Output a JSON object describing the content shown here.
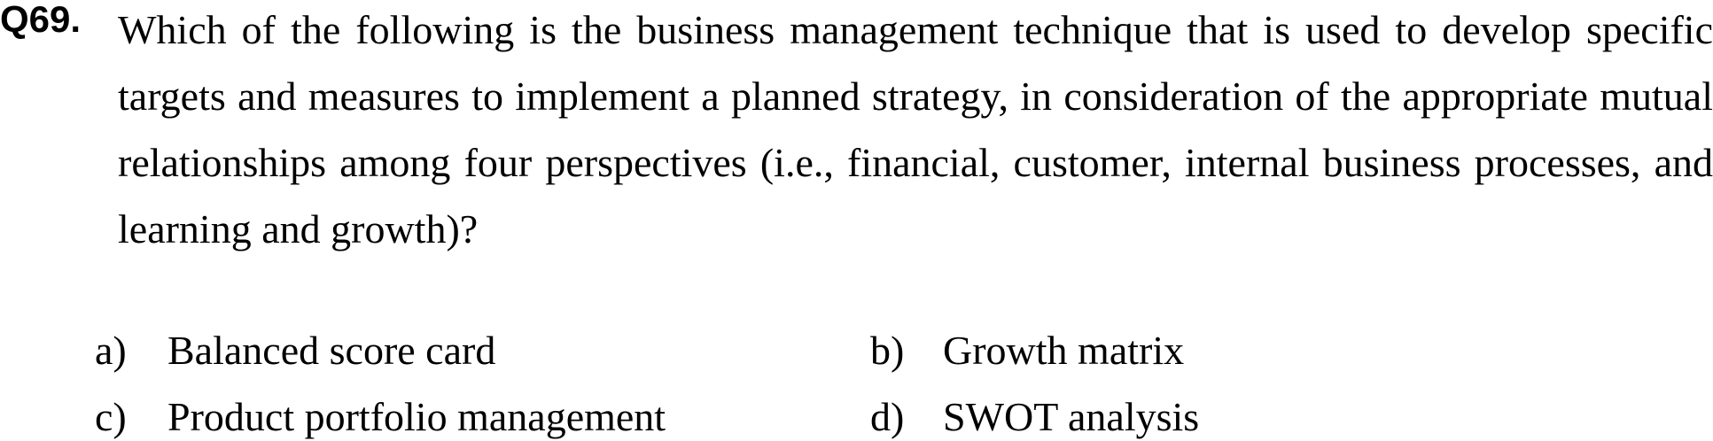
{
  "question": {
    "number": "Q69.",
    "text": "Which of the following is the business management technique that is used to develop specific targets and measures to implement a planned strategy, in consideration of the appropriate mutual relationships among four perspectives (i.e., financial, customer, internal business processes, and learning and growth)?"
  },
  "options": [
    {
      "letter": "a)",
      "text": "Balanced score card"
    },
    {
      "letter": "b)",
      "text": "Growth matrix"
    },
    {
      "letter": "c)",
      "text": "Product portfolio management"
    },
    {
      "letter": "d)",
      "text": "SWOT analysis"
    }
  ]
}
